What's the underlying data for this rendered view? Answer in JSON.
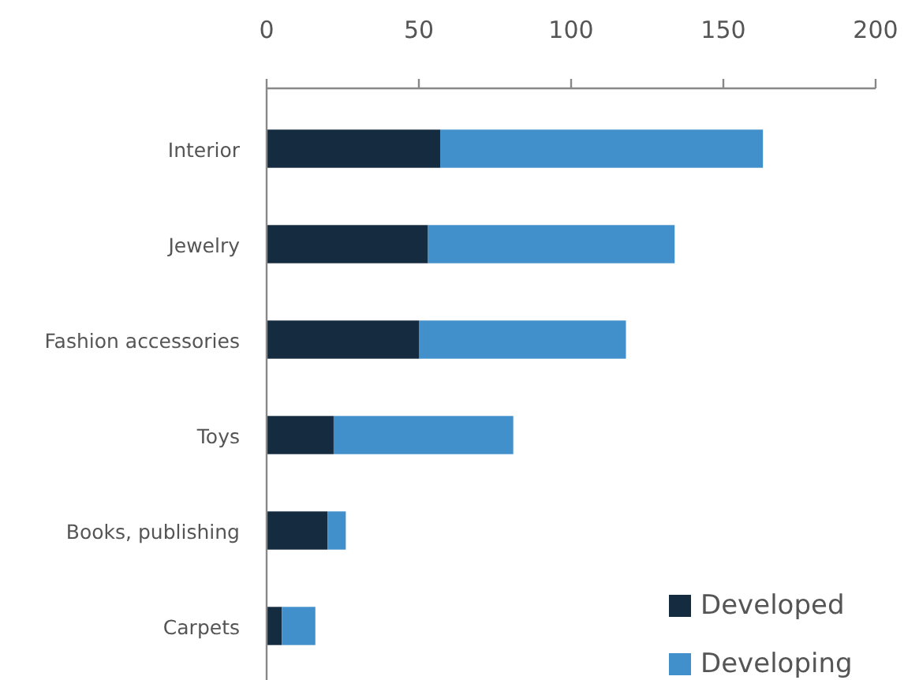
{
  "chart_data": {
    "type": "bar",
    "orientation": "horizontal",
    "stacked": true,
    "categories": [
      "Interior",
      "Jewelry",
      "Fashion accessories",
      "Toys",
      "Books, publishing",
      "Carpets"
    ],
    "series": [
      {
        "name": "Developed",
        "color": "#142b40",
        "values": [
          57,
          53,
          50,
          22,
          20,
          5
        ]
      },
      {
        "name": "Developing",
        "color": "#4190cb",
        "values": [
          106,
          81,
          68,
          59,
          6,
          11
        ]
      }
    ],
    "xlim": [
      0,
      200
    ],
    "xticks": [
      0,
      50,
      100,
      150,
      200
    ],
    "grid": false,
    "legend": "bottom right"
  }
}
